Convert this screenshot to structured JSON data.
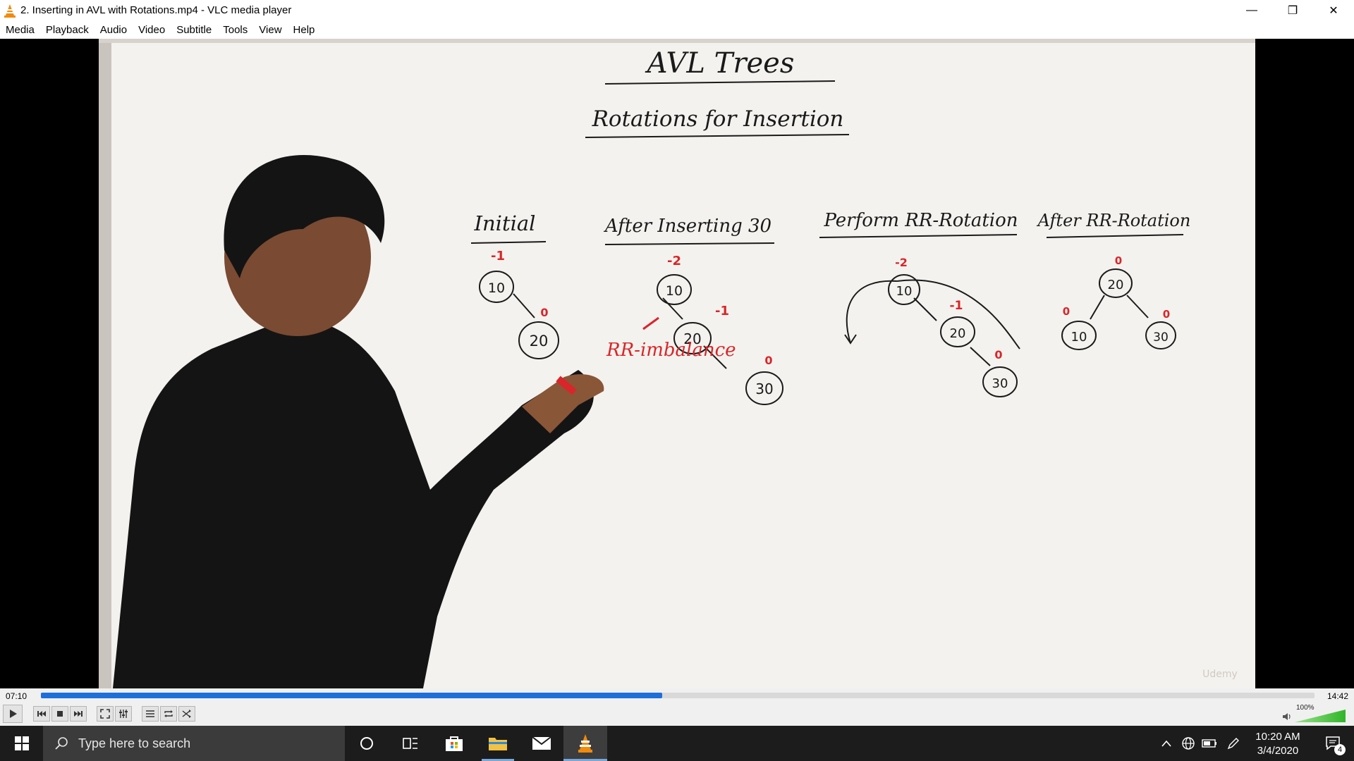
{
  "window": {
    "title": "2. Inserting in AVL with Rotations.mp4 - VLC media player",
    "minimize": "—",
    "maximize": "❐",
    "close": "✕"
  },
  "menu": [
    "Media",
    "Playback",
    "Audio",
    "Video",
    "Subtitle",
    "Tools",
    "View",
    "Help"
  ],
  "video": {
    "board_title": "AVL Trees",
    "board_subtitle": "Rotations for Insertion",
    "headings": [
      "Initial",
      "After Inserting 30",
      "Perform RR-Rotation",
      "After RR-Rotation"
    ],
    "labels": {
      "initial_10_bf": "-1",
      "initial_20_bf": "0",
      "ins_10_bf": "-2",
      "ins_20_bf": "-1",
      "ins_30_bf": "0",
      "rr_10_bf": "-2",
      "rr_20_bf": "-1",
      "rr_30_bf": "0",
      "after_20_bf": "0",
      "after_10_bf": "0",
      "after_30_bf": "0",
      "imbalance_note": "RR-imbalance",
      "watermark": "Udemy"
    },
    "nodes": [
      "10",
      "20",
      "30"
    ]
  },
  "player": {
    "current_time": "07:10",
    "total_time": "14:42",
    "progress_percent": 48.8,
    "volume": "100%",
    "volume_level": 1.0,
    "accent_color": "#1e6fd9"
  },
  "taskbar": {
    "search_placeholder": "Type here to search",
    "time": "10:20 AM",
    "date": "3/4/2020",
    "notification_count": "4"
  }
}
